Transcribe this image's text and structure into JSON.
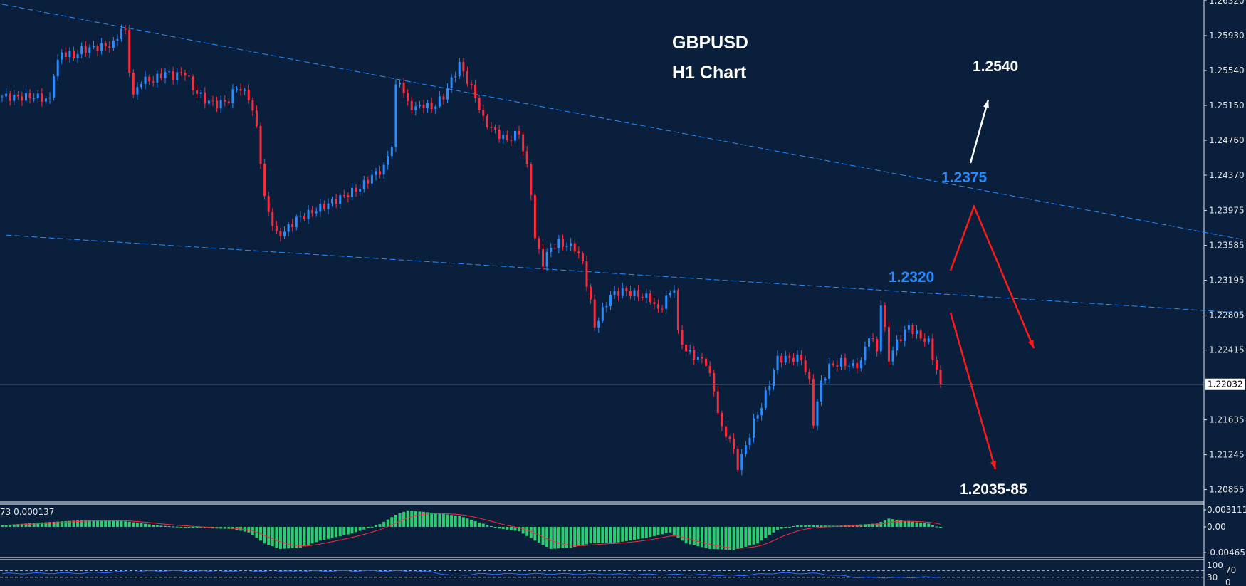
{
  "chart_data": {
    "type": "candlestick",
    "symbol_title": "GBPUSD",
    "timeframe_title": "H1 Chart",
    "colors": {
      "background": "#0a1f3b",
      "up": "#2a8cff",
      "down": "#ff2a3a",
      "trendline": "#2a8cff",
      "macd_hist": "#2ecc71",
      "macd_signal": "#ff2a3a",
      "rsi": "#2a6cff",
      "arrow_up": "#ffffff",
      "arrow_down": "#ff1a1a"
    },
    "price_axis": {
      "ylim": [
        1.2035,
        1.2632
      ],
      "ticks": [
        "1.26320",
        "1.25930",
        "1.25540",
        "1.25150",
        "1.24760",
        "1.24370",
        "1.23975",
        "1.23585",
        "1.23195",
        "1.22805",
        "1.22415",
        "1.21635",
        "1.21245",
        "1.20855"
      ],
      "current_price": "1.22032"
    },
    "closes": [
      [
        0,
        1.2525
      ],
      [
        4,
        1.2524
      ],
      [
        8,
        1.2525
      ],
      [
        12,
        1.2521
      ],
      [
        13,
        1.2552
      ],
      [
        15,
        1.2574
      ],
      [
        18,
        1.257
      ],
      [
        20,
        1.2577
      ],
      [
        24,
        1.258
      ],
      [
        28,
        1.2583
      ],
      [
        30,
        1.2601
      ],
      [
        31,
        1.2596
      ],
      [
        32,
        1.2556
      ],
      [
        33,
        1.2525
      ],
      [
        35,
        1.2543
      ],
      [
        38,
        1.2543
      ],
      [
        41,
        1.2552
      ],
      [
        43,
        1.2548
      ],
      [
        46,
        1.2552
      ],
      [
        48,
        1.2534
      ],
      [
        51,
        1.2521
      ],
      [
        54,
        1.2516
      ],
      [
        57,
        1.2521
      ],
      [
        59,
        1.2536
      ],
      [
        62,
        1.2525
      ],
      [
        64,
        1.249
      ],
      [
        65,
        1.2454
      ],
      [
        66,
        1.241
      ],
      [
        68,
        1.2383
      ],
      [
        69,
        1.237
      ],
      [
        71,
        1.2374
      ],
      [
        74,
        1.2388
      ],
      [
        78,
        1.2396
      ],
      [
        82,
        1.2405
      ],
      [
        86,
        1.2414
      ],
      [
        90,
        1.2423
      ],
      [
        93,
        1.2436
      ],
      [
        96,
        1.2445
      ],
      [
        98,
        1.2472
      ],
      [
        99,
        1.2534
      ],
      [
        100,
        1.2543
      ],
      [
        102,
        1.2516
      ],
      [
        104,
        1.2512
      ],
      [
        106,
        1.2516
      ],
      [
        108,
        1.2512
      ],
      [
        111,
        1.2525
      ],
      [
        113,
        1.2543
      ],
      [
        115,
        1.2561
      ],
      [
        117,
        1.2543
      ],
      [
        119,
        1.2525
      ],
      [
        121,
        1.2499
      ],
      [
        124,
        1.2485
      ],
      [
        127,
        1.2476
      ],
      [
        130,
        1.2485
      ],
      [
        132,
        1.2445
      ],
      [
        133,
        1.2419
      ],
      [
        134,
        1.2365
      ],
      [
        136,
        1.2339
      ],
      [
        138,
        1.2356
      ],
      [
        140,
        1.2361
      ],
      [
        144,
        1.2356
      ],
      [
        146,
        1.2339
      ],
      [
        148,
        1.2294
      ],
      [
        149,
        1.2268
      ],
      [
        151,
        1.2285
      ],
      [
        153,
        1.2303
      ],
      [
        156,
        1.2308
      ],
      [
        160,
        1.2303
      ],
      [
        163,
        1.2299
      ],
      [
        165,
        1.2285
      ],
      [
        167,
        1.2299
      ],
      [
        169,
        1.2312
      ],
      [
        170,
        1.2259
      ],
      [
        172,
        1.2241
      ],
      [
        175,
        1.2232
      ],
      [
        177,
        1.2228
      ],
      [
        179,
        1.2196
      ],
      [
        181,
        1.2152
      ],
      [
        183,
        1.2143
      ],
      [
        185,
        1.2112
      ],
      [
        187,
        1.2134
      ],
      [
        189,
        1.2161
      ],
      [
        191,
        1.2179
      ],
      [
        193,
        1.2205
      ],
      [
        195,
        1.2232
      ],
      [
        198,
        1.2232
      ],
      [
        201,
        1.2232
      ],
      [
        203,
        1.2205
      ],
      [
        204,
        1.2161
      ],
      [
        206,
        1.2205
      ],
      [
        208,
        1.2223
      ],
      [
        211,
        1.2228
      ],
      [
        214,
        1.2223
      ],
      [
        216,
        1.2228
      ],
      [
        218,
        1.2259
      ],
      [
        220,
        1.2241
      ],
      [
        221,
        1.2294
      ],
      [
        223,
        1.2232
      ],
      [
        225,
        1.225
      ],
      [
        228,
        1.2268
      ],
      [
        230,
        1.2259
      ],
      [
        233,
        1.225
      ],
      [
        236,
        1.2203
      ]
    ],
    "trendlines": [
      {
        "from": [
          0,
          1.2628
        ],
        "to": [
          312,
          1.2365
        ]
      },
      {
        "from": [
          1,
          1.237
        ],
        "to": [
          312,
          1.2283
        ]
      }
    ],
    "annotations": {
      "target_up": "1.2540",
      "resistance_upper": "1.2375",
      "resistance_lower": "1.2320",
      "target_down": "1.2035-85"
    },
    "macd": {
      "label": "73 0.000137",
      "ticks": [
        "0.003111",
        "0.00",
        "-0.00465"
      ],
      "ylim": [
        -0.00465,
        0.003111
      ],
      "histogram": [
        [
          0,
          0.0003
        ],
        [
          10,
          0.0008
        ],
        [
          20,
          0.0012
        ],
        [
          30,
          0.0011
        ],
        [
          40,
          0.0002
        ],
        [
          50,
          -0.0002
        ],
        [
          58,
          -0.0004
        ],
        [
          62,
          -0.001
        ],
        [
          66,
          -0.003
        ],
        [
          70,
          -0.004
        ],
        [
          75,
          -0.0038
        ],
        [
          80,
          -0.0025
        ],
        [
          88,
          -0.0012
        ],
        [
          95,
          0.0005
        ],
        [
          99,
          0.0022
        ],
        [
          102,
          0.003
        ],
        [
          108,
          0.0026
        ],
        [
          115,
          0.002
        ],
        [
          120,
          0.0008
        ],
        [
          125,
          -0.0003
        ],
        [
          130,
          -0.0008
        ],
        [
          134,
          -0.0025
        ],
        [
          138,
          -0.004
        ],
        [
          143,
          -0.0038
        ],
        [
          148,
          -0.003
        ],
        [
          155,
          -0.0028
        ],
        [
          162,
          -0.002
        ],
        [
          168,
          -0.001
        ],
        [
          172,
          -0.003
        ],
        [
          178,
          -0.004
        ],
        [
          184,
          -0.0042
        ],
        [
          190,
          -0.003
        ],
        [
          195,
          -0.0005
        ],
        [
          200,
          0.0003
        ],
        [
          210,
          0.0002
        ],
        [
          215,
          0.0004
        ],
        [
          220,
          0.0006
        ],
        [
          223,
          0.0015
        ],
        [
          228,
          0.001
        ],
        [
          233,
          0.0006
        ],
        [
          236,
          -0.0002
        ]
      ]
    },
    "rsi": {
      "ticks": [
        "100",
        "70",
        "30",
        "0"
      ],
      "ylim": [
        0,
        100
      ],
      "levels": [
        70,
        30
      ],
      "values": [
        [
          0,
          52
        ],
        [
          20,
          55
        ],
        [
          40,
          68
        ],
        [
          60,
          62
        ],
        [
          80,
          66
        ],
        [
          90,
          68
        ],
        [
          100,
          66
        ],
        [
          108,
          62
        ],
        [
          113,
          40
        ],
        [
          120,
          50
        ],
        [
          140,
          50
        ],
        [
          160,
          47
        ],
        [
          175,
          45
        ],
        [
          185,
          40
        ],
        [
          195,
          55
        ],
        [
          205,
          52
        ],
        [
          215,
          30
        ],
        [
          225,
          28
        ],
        [
          236,
          32
        ]
      ]
    }
  }
}
